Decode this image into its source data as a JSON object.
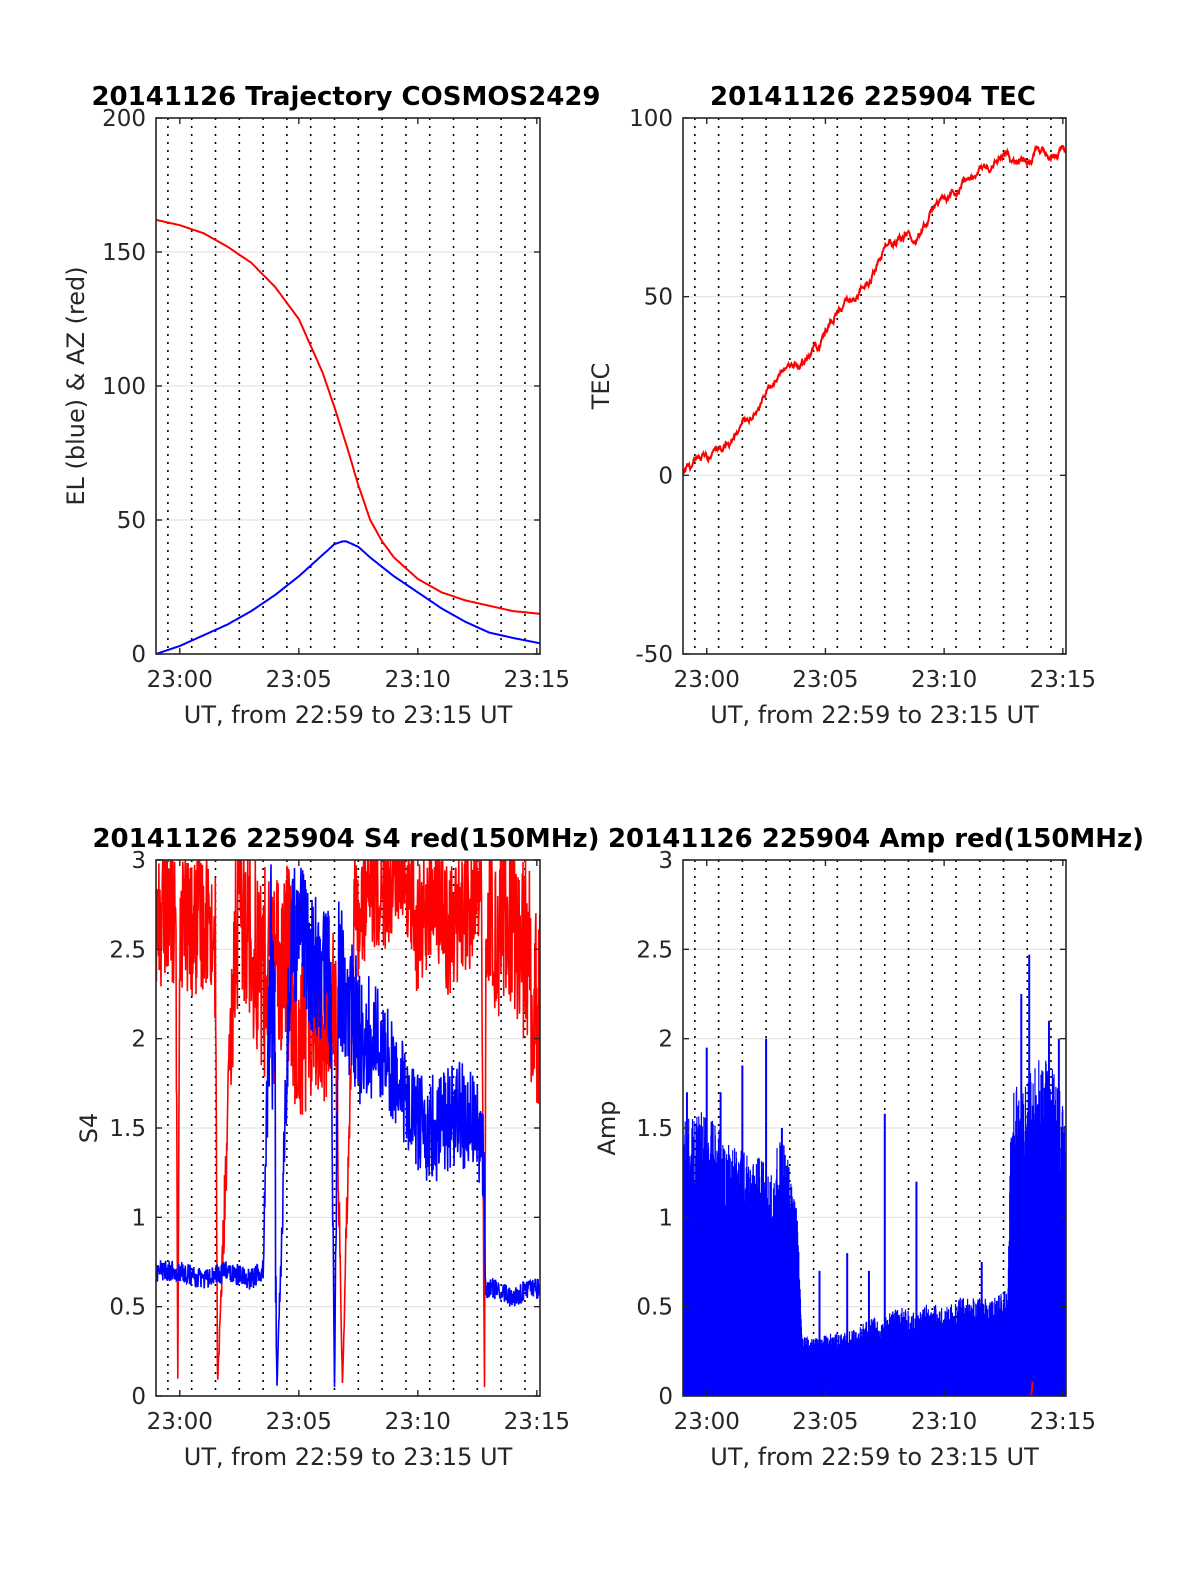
{
  "chart_data": [
    {
      "type": "line",
      "title": "20141126 Trajectory COSMOS2429",
      "xlabel": "UT, from 22:59 to 23:15 UT",
      "ylabel": "EL (blue) & AZ (red)",
      "x_ticks": [
        "23:00",
        "23:05",
        "23:10",
        "23:15"
      ],
      "x_tick_values": [
        60,
        360,
        660,
        960
      ],
      "y_ticks": [
        "0",
        "50",
        "100",
        "150",
        "200"
      ],
      "y_tick_values": [
        0,
        50,
        100,
        150,
        200
      ],
      "xlim_seconds_after_2259": [
        0,
        968
      ],
      "ylim": [
        0,
        200
      ],
      "grid": "horizontal solid, vertical dotted each minute",
      "series": [
        {
          "color": "#ff0000",
          "x": [
            0,
            60,
            120,
            180,
            240,
            300,
            360,
            420,
            450,
            480,
            510,
            540,
            570,
            600,
            660,
            720,
            780,
            840,
            900,
            968
          ],
          "values": [
            162,
            160,
            157,
            152,
            146,
            137,
            125,
            105,
            92,
            78,
            63,
            50,
            42,
            36,
            28,
            23,
            20,
            18,
            16,
            15
          ]
        },
        {
          "color": "#0000ff",
          "x": [
            0,
            60,
            120,
            180,
            240,
            300,
            360,
            420,
            450,
            470,
            480,
            510,
            540,
            600,
            660,
            720,
            780,
            840,
            900,
            968
          ],
          "values": [
            0,
            3,
            7,
            11,
            16,
            22,
            29,
            37,
            41,
            42,
            42,
            40,
            36,
            29,
            23,
            17,
            12,
            8,
            6,
            4
          ]
        }
      ]
    },
    {
      "type": "line",
      "title": "20141126 225904 TEC",
      "xlabel": "UT, from 22:59 to 23:15 UT",
      "ylabel": "TEC",
      "x_ticks": [
        "23:00",
        "23:05",
        "23:10",
        "23:15"
      ],
      "x_tick_values": [
        60,
        360,
        660,
        960
      ],
      "y_ticks": [
        "-50",
        "0",
        "50",
        "100"
      ],
      "y_tick_values": [
        -50,
        0,
        50,
        100
      ],
      "xlim_seconds_after_2259": [
        0,
        968
      ],
      "ylim": [
        -50,
        100
      ],
      "grid": "horizontal solid, vertical dotted each minute",
      "series": [
        {
          "color": "#ff0000",
          "x": [
            0,
            30,
            60,
            90,
            120,
            150,
            180,
            210,
            240,
            270,
            300,
            330,
            360,
            390,
            420,
            450,
            480,
            510,
            540,
            570,
            600,
            630,
            660,
            690,
            720,
            750,
            780,
            810,
            840,
            870,
            900,
            930,
            960,
            968
          ],
          "values": [
            0,
            2,
            4,
            6,
            9,
            14,
            18,
            22,
            27,
            30,
            32,
            35,
            40,
            46,
            48,
            52,
            57,
            62,
            66,
            67,
            68,
            73,
            78,
            80,
            82,
            84,
            87,
            88,
            89,
            89,
            90,
            91,
            92,
            91
          ]
        }
      ]
    },
    {
      "type": "line",
      "title": "20141126 225904 S4 red(150MHz)",
      "xlabel": "UT, from 22:59 to 23:15 UT",
      "ylabel": "S4",
      "x_ticks": [
        "23:00",
        "23:05",
        "23:10",
        "23:15"
      ],
      "x_tick_values": [
        60,
        360,
        660,
        960
      ],
      "y_ticks": [
        "0",
        "0.5",
        "1",
        "1.5",
        "2",
        "2.5",
        "3"
      ],
      "y_tick_values": [
        0,
        0.5,
        1,
        1.5,
        2,
        2.5,
        3
      ],
      "xlim_seconds_after_2259": [
        0,
        968
      ],
      "ylim": [
        0,
        3
      ],
      "grid": "horizontal solid, vertical dotted each minute",
      "series": [
        {
          "color": "#ff0000",
          "pattern": "noisy",
          "x": [
            0,
            30,
            50,
            55,
            60,
            90,
            130,
            150,
            155,
            200,
            230,
            260,
            300,
            330,
            360,
            400,
            420,
            450,
            470,
            500,
            540,
            580,
            620,
            660,
            700,
            740,
            780,
            820,
            828,
            832,
            860,
            900,
            940,
            968
          ],
          "values": [
            2.6,
            2.8,
            2.6,
            0.05,
            2.7,
            2.6,
            2.7,
            2.5,
            0.05,
            2.6,
            2.7,
            2.4,
            2.3,
            2.5,
            2.1,
            2.2,
            2.0,
            2.4,
            0.05,
            2.7,
            2.8,
            2.8,
            2.9,
            2.6,
            2.8,
            2.6,
            2.7,
            2.8,
            0.05,
            2.7,
            2.6,
            2.7,
            2.4,
            2.1
          ],
          "noise": [
            0.4,
            0.4,
            0.4,
            0,
            0.4,
            0.4,
            0.4,
            0.4,
            0,
            0.5,
            0.5,
            0.6,
            0.6,
            0.6,
            0.6,
            0.5,
            0.5,
            0.5,
            0,
            0.4,
            0.3,
            0.3,
            0.2,
            0.4,
            0.3,
            0.4,
            0.4,
            0.3,
            0,
            0.4,
            0.5,
            0.5,
            0.6,
            0.6
          ]
        },
        {
          "color": "#0000ff",
          "pattern": "noisy",
          "x": [
            0,
            60,
            120,
            180,
            240,
            270,
            290,
            300,
            305,
            340,
            360,
            400,
            440,
            450,
            460,
            480,
            520,
            560,
            600,
            640,
            680,
            720,
            760,
            800,
            826,
            830,
            860,
            900,
            940,
            968
          ],
          "values": [
            0.7,
            0.7,
            0.65,
            0.7,
            0.65,
            0.7,
            2.5,
            1.5,
            0.05,
            2.6,
            2.6,
            2.4,
            2.3,
            0.05,
            2.4,
            2.2,
            2.0,
            2.0,
            1.8,
            1.6,
            1.5,
            1.5,
            1.6,
            1.5,
            1.4,
            0.6,
            0.6,
            0.55,
            0.6,
            0.6
          ],
          "noise": [
            0.06,
            0.06,
            0.06,
            0.06,
            0.06,
            0.06,
            0.5,
            0.8,
            0,
            0.4,
            0.4,
            0.4,
            0.5,
            0,
            0.5,
            0.4,
            0.4,
            0.3,
            0.3,
            0.3,
            0.3,
            0.3,
            0.3,
            0.3,
            0.3,
            0.06,
            0.06,
            0.06,
            0.06,
            0.06
          ]
        }
      ]
    },
    {
      "type": "line",
      "title": "20141126 225904 Amp red(150MHz)",
      "xlabel": "UT, from 22:59 to 23:15 UT",
      "ylabel": "Amp",
      "x_ticks": [
        "23:00",
        "23:05",
        "23:10",
        "23:15"
      ],
      "x_tick_values": [
        60,
        360,
        660,
        960
      ],
      "y_ticks": [
        "0",
        "0.5",
        "1",
        "1.5",
        "2",
        "2.5",
        "3"
      ],
      "y_tick_values": [
        0,
        0.5,
        1,
        1.5,
        2,
        2.5,
        3
      ],
      "xlim_seconds_after_2259": [
        0,
        968
      ],
      "ylim": [
        0,
        3
      ],
      "grid": "horizontal solid, vertical dotted each minute",
      "series": [
        {
          "color": "#0000ff",
          "pattern": "envelope",
          "x": [
            0,
            60,
            120,
            180,
            220,
            250,
            270,
            290,
            300,
            330,
            360,
            400,
            440,
            480,
            500,
            540,
            580,
            620,
            660,
            700,
            740,
            780,
            820,
            830,
            860,
            900,
            940,
            968
          ],
          "values": [
            1.55,
            1.6,
            1.4,
            1.35,
            1.3,
            1.45,
            1.3,
            1.0,
            0.35,
            0.32,
            0.35,
            0.35,
            0.38,
            0.45,
            0.42,
            0.5,
            0.48,
            0.52,
            0.5,
            0.55,
            0.55,
            0.55,
            0.6,
            1.7,
            1.8,
            1.9,
            1.85,
            1.6
          ],
          "spikes": [
            [
              10,
              1.7
            ],
            [
              60,
              1.95
            ],
            [
              95,
              1.7
            ],
            [
              150,
              1.85
            ],
            [
              210,
              2.0
            ],
            [
              250,
              1.5
            ],
            [
              345,
              0.7
            ],
            [
              415,
              0.8
            ],
            [
              470,
              0.7
            ],
            [
              510,
              1.58
            ],
            [
              590,
              1.2
            ],
            [
              755,
              0.75
            ],
            [
              855,
              2.25
            ],
            [
              875,
              2.47
            ],
            [
              925,
              2.1
            ],
            [
              950,
              2.0
            ]
          ]
        }
      ]
    }
  ]
}
